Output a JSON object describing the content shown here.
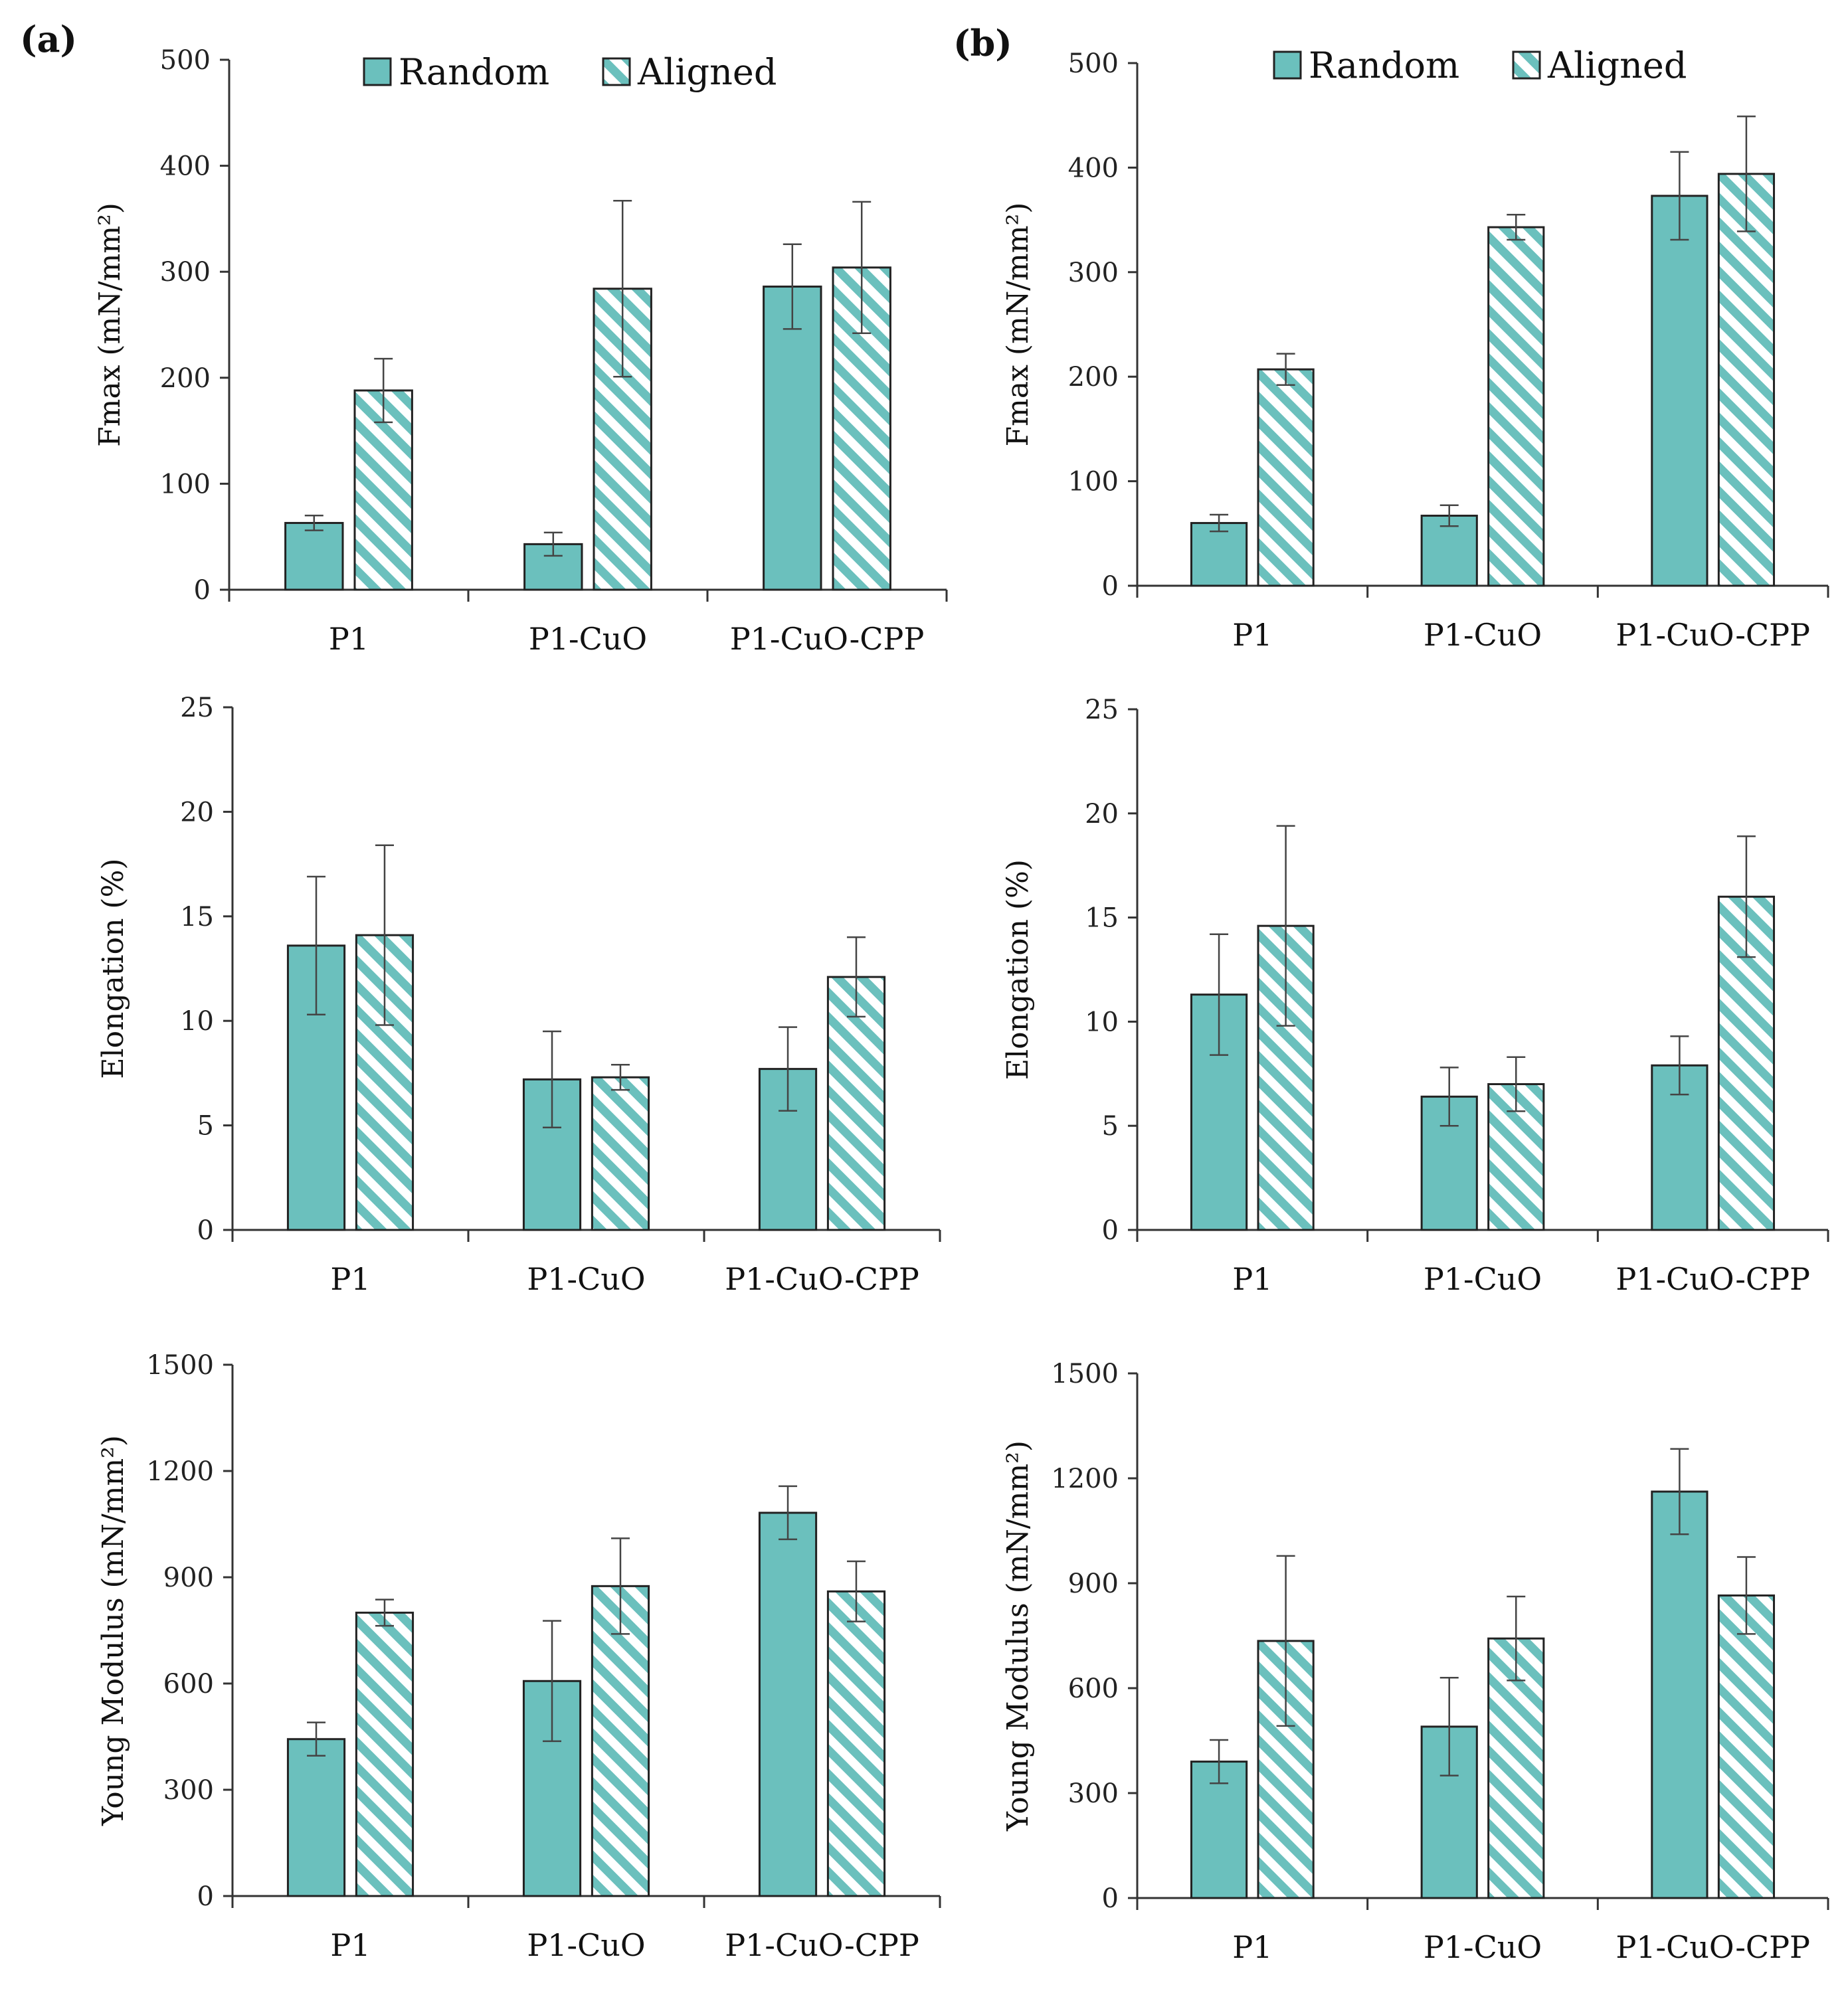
{
  "legend": {
    "random_label": "Random",
    "aligned_label": "Aligned"
  },
  "panel_labels": [
    "(a)",
    "(b)"
  ],
  "colors": {
    "random_fill": "#6bc0bd",
    "stripe": "#6bc0bd",
    "edge": "#222222",
    "axis": "#333333"
  },
  "chart_data": [
    {
      "id": "a-fmax",
      "type": "bar",
      "panel": "(a)",
      "ylabel": "Fmax (mN/mm²)",
      "ylim": [
        0,
        500
      ],
      "yticks": [
        0,
        100,
        200,
        300,
        400,
        500
      ],
      "categories": [
        "P1",
        "P1-CuO",
        "P1-CuO-CPP"
      ],
      "series": [
        {
          "name": "Random",
          "values": [
            63,
            43,
            286
          ],
          "errors": [
            7,
            11,
            40
          ]
        },
        {
          "name": "Aligned",
          "values": [
            188,
            284,
            304
          ],
          "errors": [
            30,
            83,
            62
          ]
        }
      ]
    },
    {
      "id": "b-fmax",
      "type": "bar",
      "panel": "(b)",
      "ylabel": "Fmax (mN/mm²)",
      "ylim": [
        0,
        500
      ],
      "yticks": [
        0,
        100,
        200,
        300,
        400,
        500
      ],
      "categories": [
        "P1",
        "P1-CuO",
        "P1-CuO-CPP"
      ],
      "series": [
        {
          "name": "Random",
          "values": [
            60,
            67,
            373
          ],
          "errors": [
            8,
            10,
            42
          ]
        },
        {
          "name": "Aligned",
          "values": [
            207,
            343,
            394
          ],
          "errors": [
            15,
            12,
            55
          ]
        }
      ]
    },
    {
      "id": "a-elong",
      "type": "bar",
      "panel": "(a)",
      "ylabel": "Elongation (%)",
      "ylim": [
        0,
        25
      ],
      "yticks": [
        0,
        5,
        10,
        15,
        20,
        25
      ],
      "categories": [
        "P1",
        "P1-CuO",
        "P1-CuO-CPP"
      ],
      "series": [
        {
          "name": "Random",
          "values": [
            13.6,
            7.2,
            7.7
          ],
          "errors": [
            3.3,
            2.3,
            2.0
          ]
        },
        {
          "name": "Aligned",
          "values": [
            14.1,
            7.3,
            12.1
          ],
          "errors": [
            4.3,
            0.6,
            1.9
          ]
        }
      ]
    },
    {
      "id": "b-elong",
      "type": "bar",
      "panel": "(b)",
      "ylabel": "Elongation (%)",
      "ylim": [
        0,
        25
      ],
      "yticks": [
        0,
        5,
        10,
        15,
        20,
        25
      ],
      "categories": [
        "P1",
        "P1-CuO",
        "P1-CuO-CPP"
      ],
      "series": [
        {
          "name": "Random",
          "values": [
            11.3,
            6.4,
            7.9
          ],
          "errors": [
            2.9,
            1.4,
            1.4
          ]
        },
        {
          "name": "Aligned",
          "values": [
            14.6,
            7.0,
            16.0
          ],
          "errors": [
            4.8,
            1.3,
            2.9
          ]
        }
      ]
    },
    {
      "id": "a-young",
      "type": "bar",
      "panel": "(a)",
      "ylabel": "Young Modulus (mN/mm²)",
      "ylim": [
        0,
        1500
      ],
      "yticks": [
        0,
        300,
        600,
        900,
        1200,
        1500
      ],
      "categories": [
        "P1",
        "P1-CuO",
        "P1-CuO-CPP"
      ],
      "series": [
        {
          "name": "Random",
          "values": [
            443,
            607,
            1082
          ],
          "errors": [
            47,
            170,
            75
          ]
        },
        {
          "name": "Aligned",
          "values": [
            800,
            875,
            860
          ],
          "errors": [
            37,
            135,
            85
          ]
        }
      ]
    },
    {
      "id": "b-young",
      "type": "bar",
      "panel": "(b)",
      "ylabel": "Young Modulus (mN/mm²)",
      "ylim": [
        0,
        1500
      ],
      "yticks": [
        0,
        300,
        600,
        900,
        1200,
        1500
      ],
      "categories": [
        "P1",
        "P1-CuO",
        "P1-CuO-CPP"
      ],
      "series": [
        {
          "name": "Random",
          "values": [
            390,
            490,
            1162
          ],
          "errors": [
            62,
            140,
            122
          ]
        },
        {
          "name": "Aligned",
          "values": [
            735,
            742,
            865
          ],
          "errors": [
            243,
            120,
            110
          ]
        }
      ]
    }
  ]
}
